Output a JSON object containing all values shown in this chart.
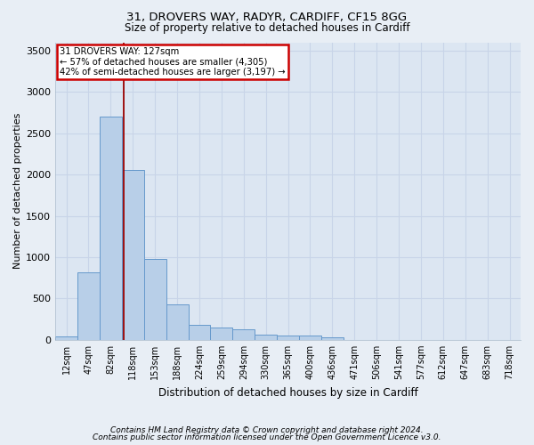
{
  "title": "31, DROVERS WAY, RADYR, CARDIFF, CF15 8GG",
  "subtitle": "Size of property relative to detached houses in Cardiff",
  "xlabel": "Distribution of detached houses by size in Cardiff",
  "ylabel": "Number of detached properties",
  "footer_line1": "Contains HM Land Registry data © Crown copyright and database right 2024.",
  "footer_line2": "Contains public sector information licensed under the Open Government Licence v3.0.",
  "annotation_line1": "31 DROVERS WAY: 127sqm",
  "annotation_line2": "← 57% of detached houses are smaller (4,305)",
  "annotation_line3": "42% of semi-detached houses are larger (3,197) →",
  "bar_categories": [
    "12sqm",
    "47sqm",
    "82sqm",
    "118sqm",
    "153sqm",
    "188sqm",
    "224sqm",
    "259sqm",
    "294sqm",
    "330sqm",
    "365sqm",
    "400sqm",
    "436sqm",
    "471sqm",
    "506sqm",
    "541sqm",
    "577sqm",
    "612sqm",
    "647sqm",
    "683sqm",
    "718sqm"
  ],
  "bar_values": [
    40,
    820,
    2700,
    2050,
    980,
    430,
    180,
    145,
    125,
    60,
    55,
    55,
    35,
    0,
    0,
    0,
    0,
    0,
    0,
    0,
    0
  ],
  "bar_color": "#b8cfe8",
  "bar_edge_color": "#6699cc",
  "red_line_color": "#990000",
  "annotation_box_edge_color": "#cc0000",
  "bg_color": "#e8eef5",
  "plot_bg_color": "#dce6f2",
  "grid_color": "#c8d4e8",
  "ylim": [
    0,
    3600
  ],
  "yticks": [
    0,
    500,
    1000,
    1500,
    2000,
    2500,
    3000,
    3500
  ],
  "red_line_x": 2.58
}
